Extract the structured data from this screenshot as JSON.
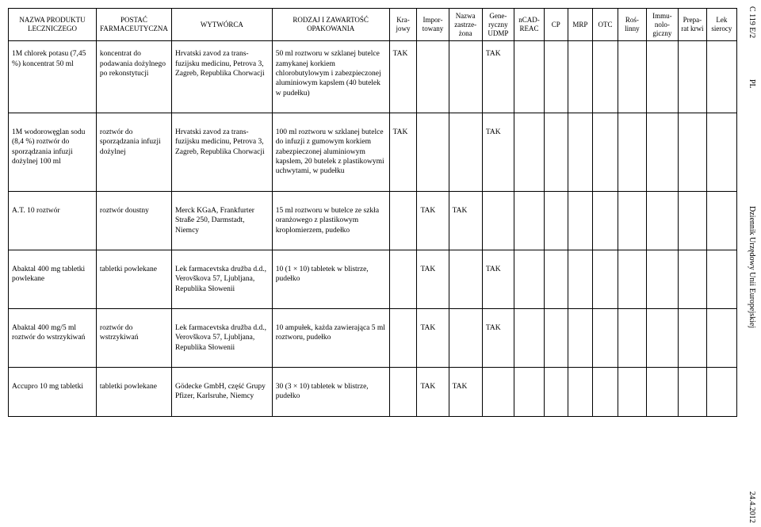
{
  "side": {
    "top": "C 119 E/2",
    "pl": "PL",
    "mid": "Dziennik Urzędowy Unii Europejskiej",
    "bottom": "24.4.2012"
  },
  "headers": {
    "c0": "NAZWA PRODUKTU LECZNICZEGO",
    "c1": "POSTAĆ FARMACEUTYCZNA",
    "c2": "WYTWÓRCA",
    "c3": "RODZAJ I ZAWARTOŚĆ OPAKOWANIA",
    "c4": "Kra­jowy",
    "c5": "Impor­towany",
    "c6": "Nazwa zastrze­żona",
    "c7": "Gene­ryczny UDMP",
    "c8": "nCAD-REAC",
    "c9": "CP",
    "c10": "MRP",
    "c11": "OTC",
    "c12": "Roś­linny",
    "c13": "Immu­nolo­giczny",
    "c14": "Prepa­rat krwi",
    "c15": "Lek sierocy"
  },
  "rows": [
    {
      "c0": "1M chlorek potasu (7,45 %) koncentrat 50 ml",
      "c1": "koncentrat do podawania dożyl­nego po rekonsty­tucji",
      "c2": "Hrvatski zavod za trans­fuzijsku medicinu, Petrova 3, Zagreb, Republika Chor­wacji",
      "c3": "50 ml roztworu w szklanej butelce zamykanej korkiem chlorobutylowym i zabezpie­czonej aluminiowym kapslem (40 butelek w pudełku)",
      "c4": "TAK",
      "c5": "",
      "c6": "",
      "c7": "TAK",
      "c8": "",
      "c9": "",
      "c10": "",
      "c11": "",
      "c12": "",
      "c13": "",
      "c14": "",
      "c15": ""
    },
    {
      "c0": "1M wodorowęglan sodu (8,4 %) roztwór do sporządzania infuzji dożylnej 100 ml",
      "c1": "roztwór do sporządzania infuzji dożylnej",
      "c2": "Hrvatski zavod za trans­fuzijsku medicinu, Petrova 3, Zagreb, Republika Chor­wacji",
      "c3": "100 ml roztworu w szklanej butelce do infuzji z gumowym korkiem zabezpieczonej aluminiowym kapslem, 20 butelek z plastikowymi uchwytami, w pudełku",
      "c4": "TAK",
      "c5": "",
      "c6": "",
      "c7": "TAK",
      "c8": "",
      "c9": "",
      "c10": "",
      "c11": "",
      "c12": "",
      "c13": "",
      "c14": "",
      "c15": ""
    },
    {
      "c0": "A.T. 10 roztwór",
      "c1": "roztwór doustny",
      "c2": "Merck KGaA, Frankfurter Straße 250, Darmstadt, Niemcy",
      "c3": "15 ml roztworu w butelce ze szkła oranżowego z plasti­kowym kroplomierzem, pudełko",
      "c4": "",
      "c5": "TAK",
      "c6": "TAK",
      "c7": "",
      "c8": "",
      "c9": "",
      "c10": "",
      "c11": "",
      "c12": "",
      "c13": "",
      "c14": "",
      "c15": ""
    },
    {
      "c0": "Abaktal 400 mg tabletki powlekane",
      "c1": "tabletki powlekane",
      "c2": "Lek farmacevtska družba d.d., Verovškova 57, Ljub­ljana, Republika Słowenii",
      "c3": "10 (1 × 10) tabletek w blist­rze, pudełko",
      "c4": "",
      "c5": "TAK",
      "c6": "",
      "c7": "TAK",
      "c8": "",
      "c9": "",
      "c10": "",
      "c11": "",
      "c12": "",
      "c13": "",
      "c14": "",
      "c15": ""
    },
    {
      "c0": "Abaktal 400 mg/5 ml roztwór do wstrzyki­wań",
      "c1": "roztwór do wstrzykiwań",
      "c2": "Lek farmacevtska družba d.d., Verovškova 57, Ljub­ljana, Republika Słowenii",
      "c3": "10 ampułek, każda zawiera­jąca 5 ml roztworu, pudełko",
      "c4": "",
      "c5": "TAK",
      "c6": "",
      "c7": "TAK",
      "c8": "",
      "c9": "",
      "c10": "",
      "c11": "",
      "c12": "",
      "c13": "",
      "c14": "",
      "c15": ""
    },
    {
      "c0": "Accupro 10 mg tabletki",
      "c1": "tabletki powlekane",
      "c2": "Gödecke GmbH, część Grupy Pfizer, Karlsruhe, Niemcy",
      "c3": "30 (3 × 10) tabletek w blist­rze, pudełko",
      "c4": "",
      "c5": "TAK",
      "c6": "TAK",
      "c7": "",
      "c8": "",
      "c9": "",
      "c10": "",
      "c11": "",
      "c12": "",
      "c13": "",
      "c14": "",
      "c15": ""
    }
  ]
}
